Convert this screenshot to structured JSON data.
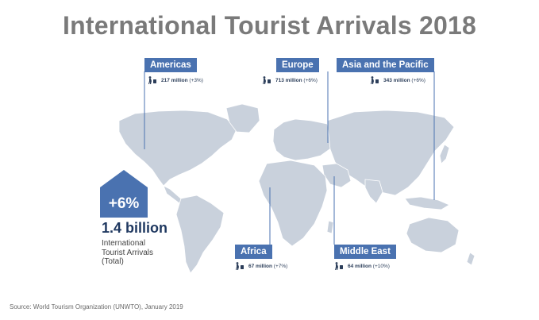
{
  "title": "International Tourist Arrivals 2018",
  "total": {
    "change": "+6%",
    "value": "1.4 billion",
    "caption_lines": [
      "International",
      "Tourist Arrivals",
      "(Total)"
    ]
  },
  "regions": [
    {
      "name": "Americas",
      "arrivals": "217 million",
      "change": "(+3%)"
    },
    {
      "name": "Europe",
      "arrivals": "713 million",
      "change": "(+6%)"
    },
    {
      "name": "Asia and the Pacific",
      "arrivals": "343 million",
      "change": "(+6%)"
    },
    {
      "name": "Africa",
      "arrivals": "67 million",
      "change": "(+7%)"
    },
    {
      "name": "Middle East",
      "arrivals": "64 million",
      "change": "(+10%)"
    }
  ],
  "source": "Source: World  Tourism Organization (UNWTO), January 2019",
  "colors": {
    "accent": "#4a72b0",
    "land": "#c9d1dc",
    "title": "#7a7a7a",
    "total_value": "#1f3860"
  },
  "icons": {
    "traveler": "traveler-with-suitcase-icon",
    "total_badge": "house-shape-badge"
  }
}
